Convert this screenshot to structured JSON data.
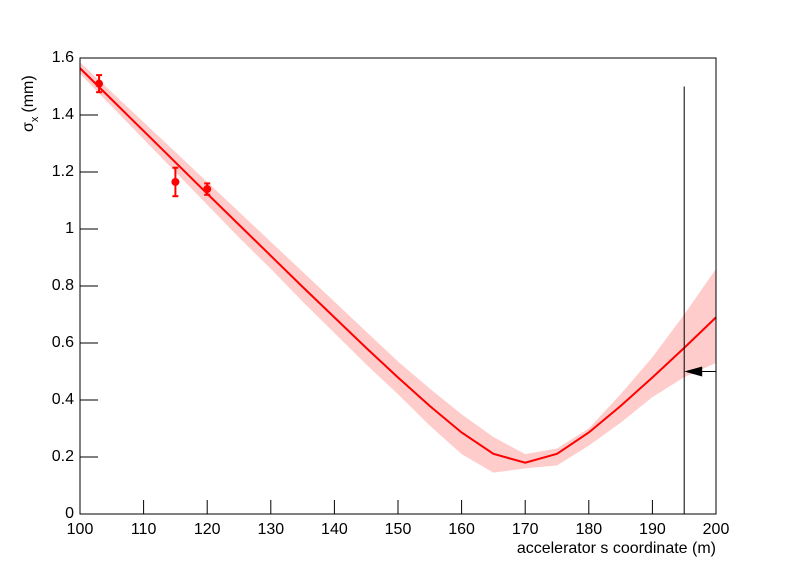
{
  "chart_data": {
    "type": "fit",
    "xlabel": "accelerator s coordinate (m)",
    "ylabel": {
      "symbol": "σ",
      "subscript": "x",
      "unit": "(mm)"
    },
    "xlim": [
      100,
      200
    ],
    "ylim": [
      0,
      1.6
    ],
    "xticks": [
      100,
      110,
      120,
      130,
      140,
      150,
      160,
      170,
      180,
      190,
      200
    ],
    "yticks": [
      0,
      0.2,
      0.4,
      0.6,
      0.8,
      1,
      1.2,
      1.4,
      1.6
    ],
    "color": "#ff0000",
    "band_color": "#ffcccc",
    "fit": {
      "x": [
        100,
        105,
        110,
        115,
        120,
        125,
        130,
        135,
        140,
        145,
        150,
        155,
        160,
        165,
        170,
        175,
        180,
        185,
        190,
        195,
        200
      ],
      "values": [
        1.564,
        1.454,
        1.344,
        1.234,
        1.124,
        1.015,
        0.906,
        0.797,
        0.69,
        0.583,
        0.479,
        0.379,
        0.286,
        0.211,
        0.18,
        0.211,
        0.286,
        0.379,
        0.479,
        0.583,
        0.69
      ],
      "upper": [
        1.585,
        1.48,
        1.375,
        1.27,
        1.165,
        1.06,
        0.955,
        0.85,
        0.745,
        0.64,
        0.535,
        0.44,
        0.35,
        0.27,
        0.21,
        0.23,
        0.3,
        0.42,
        0.55,
        0.7,
        0.86
      ],
      "lower": [
        1.545,
        1.43,
        1.315,
        1.2,
        1.085,
        0.97,
        0.86,
        0.745,
        0.635,
        0.525,
        0.42,
        0.31,
        0.21,
        0.145,
        0.16,
        0.17,
        0.24,
        0.32,
        0.41,
        0.48,
        0.53
      ]
    },
    "points": {
      "x": [
        103,
        115,
        120
      ],
      "values": [
        1.51,
        1.165,
        1.14
      ],
      "errors": [
        0.03,
        0.05,
        0.02
      ]
    },
    "marker_line": {
      "x": 195,
      "top": 1.5
    },
    "arrow": {
      "y": 0.5
    }
  }
}
